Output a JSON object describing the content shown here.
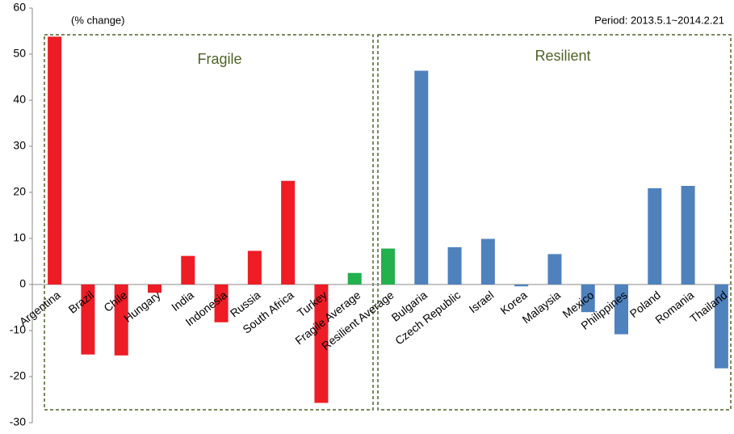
{
  "chart_data": {
    "type": "bar",
    "annotations": [
      "(% change)",
      "Period: 2013.5.1~2014.2.21"
    ],
    "groups": [
      "Fragile",
      "Resilient"
    ],
    "categories": [
      "Argentina",
      "Brazil",
      "Chile",
      "Hungary",
      "India",
      "Indonesia",
      "Russia",
      "South Africa",
      "Turkey",
      "Fragile Average",
      "Resilient Average",
      "Bulgaria",
      "Czech Republic",
      "Israel",
      "Korea",
      "Malaysia",
      "Mexico",
      "Philippines",
      "Poland",
      "Romania",
      "Thailand"
    ],
    "values": [
      53.8,
      -15.2,
      -15.4,
      -1.8,
      6.2,
      -8.2,
      7.3,
      22.5,
      -25.7,
      2.5,
      7.8,
      46.4,
      8.1,
      9.9,
      -0.4,
      6.6,
      -6.0,
      -10.8,
      20.9,
      21.4,
      -18.2
    ],
    "colors": [
      "#ee1c25",
      "#ee1c25",
      "#ee1c25",
      "#ee1c25",
      "#ee1c25",
      "#ee1c25",
      "#ee1c25",
      "#ee1c25",
      "#ee1c25",
      "#22b14c",
      "#22b14c",
      "#4f81bd",
      "#4f81bd",
      "#4f81bd",
      "#4f81bd",
      "#4f81bd",
      "#4f81bd",
      "#4f81bd",
      "#4f81bd",
      "#4f81bd",
      "#4f81bd"
    ],
    "ylim": [
      -30,
      60
    ],
    "yticks": [
      -30,
      -20,
      -10,
      0,
      10,
      20,
      30,
      40,
      50,
      60
    ],
    "grid": false
  }
}
